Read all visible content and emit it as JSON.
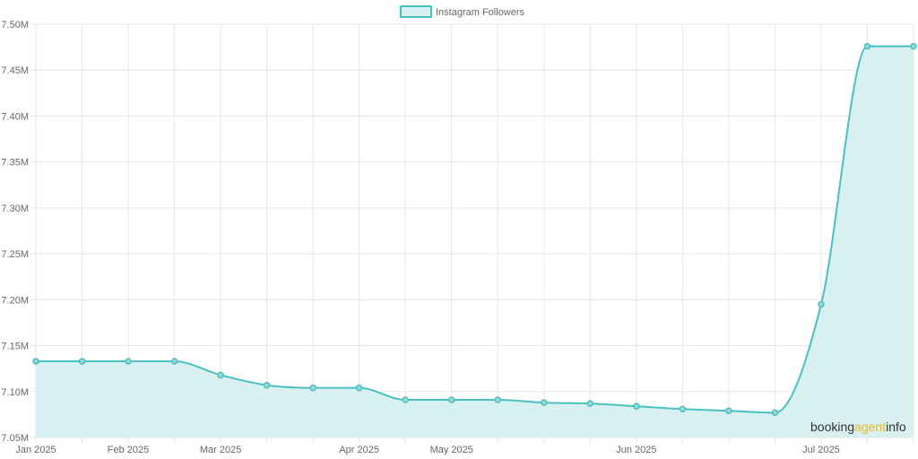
{
  "chart_data": {
    "type": "area",
    "x": [
      "2025-01-01",
      "2025-01-17",
      "2025-02-01",
      "2025-02-17",
      "2025-03-01",
      "2025-03-09",
      "2025-03-17",
      "2025-04-01",
      "2025-04-17",
      "2025-05-01",
      "2025-05-09",
      "2025-05-17",
      "2025-05-25",
      "2025-06-01",
      "2025-06-09",
      "2025-06-17",
      "2025-06-25",
      "2025-07-01",
      "2025-07-09",
      "2025-07-17"
    ],
    "series": [
      {
        "name": "Instagram Followers",
        "values": [
          7133000,
          7133000,
          7133000,
          7133000,
          7118000,
          7107000,
          7104000,
          7104000,
          7091000,
          7091000,
          7091000,
          7088000,
          7087000,
          7084000,
          7081000,
          7079000,
          7077000,
          7195000,
          7476000,
          7476000
        ]
      }
    ],
    "x_ticks": [
      "Jan 2025",
      "Feb 2025",
      "Mar 2025",
      "Apr 2025",
      "May 2025",
      "Jun 2025",
      "Jul 2025"
    ],
    "y_ticks": [
      "7.05M",
      "7.10M",
      "7.15M",
      "7.20M",
      "7.25M",
      "7.30M",
      "7.35M",
      "7.40M",
      "7.45M",
      "7.50M"
    ],
    "ylim": [
      7050000,
      7500000
    ],
    "grid": true,
    "legend_position": "top-center",
    "colors": {
      "line": "#4bc0c0",
      "fill": "#d9f0f1",
      "grid": "#e6e6e6"
    }
  },
  "watermark": {
    "part1": "booking",
    "part2": "agent",
    "part3": "info"
  }
}
